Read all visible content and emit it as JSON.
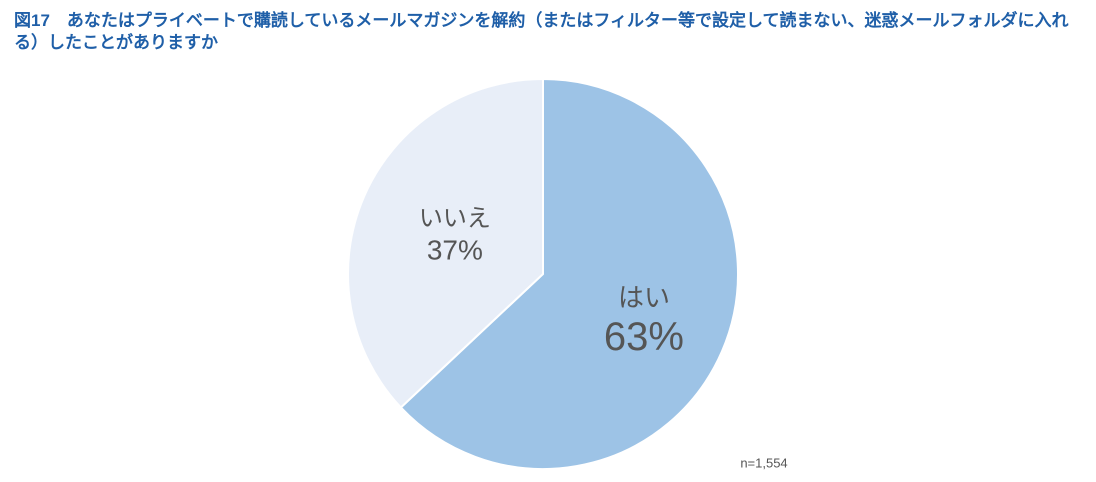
{
  "chart_data": {
    "type": "pie",
    "title": "図17　あなたはプライベートで購読しているメールマガジンを解約（またはフィルター等で設定して読まない、迷惑メールフォルダに入れる）したことがありますか",
    "categories": [
      "はい",
      "いいえ"
    ],
    "values": [
      63,
      37
    ],
    "value_labels": [
      "63%",
      "37%"
    ],
    "colors": [
      "#9dc3e6",
      "#e8eef8"
    ],
    "note": "n=1,554"
  }
}
